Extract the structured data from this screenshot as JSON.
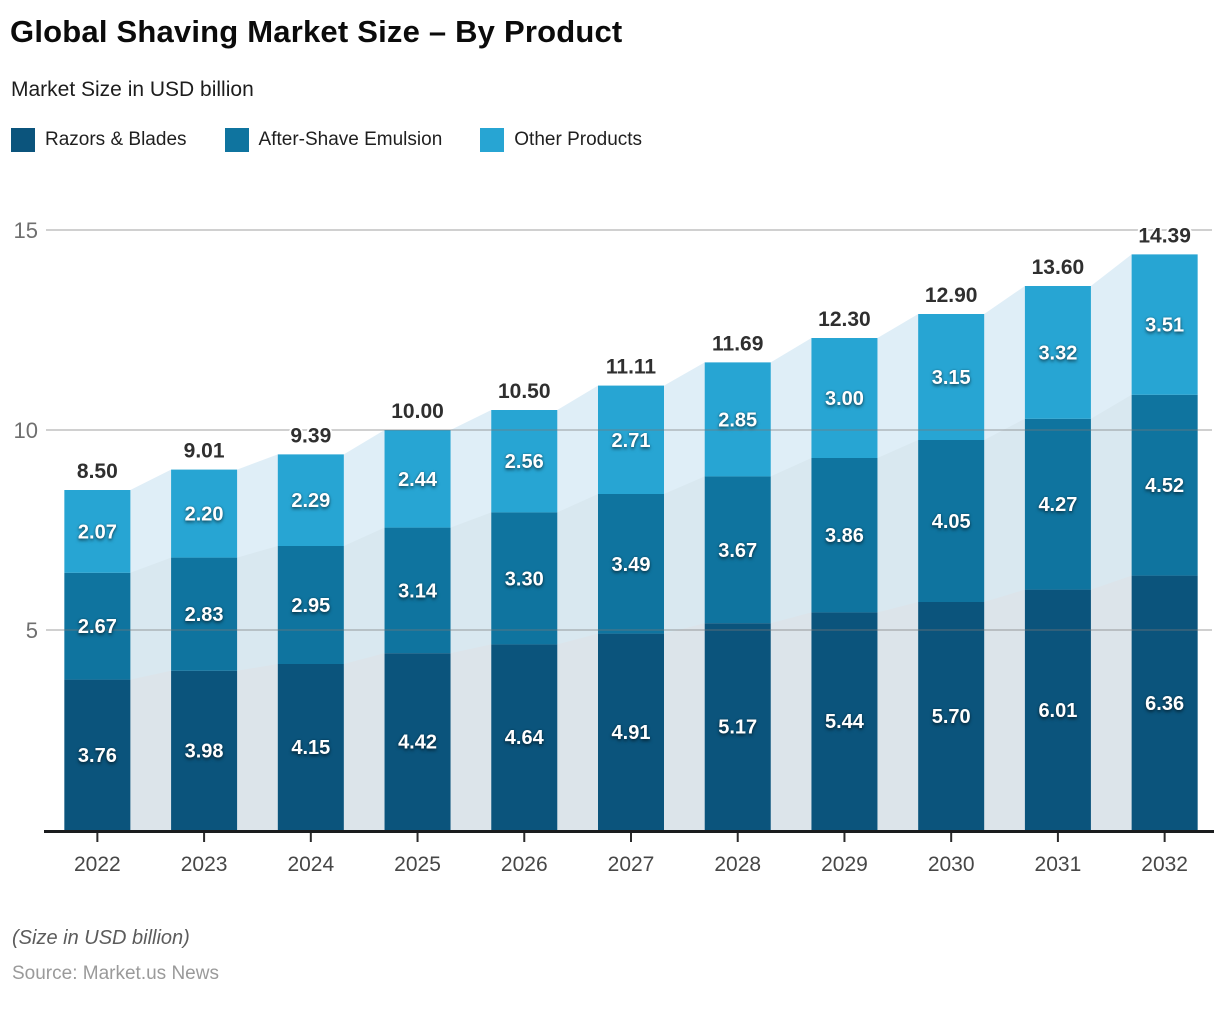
{
  "header": {
    "title": "Global Shaving Market Size – By Product",
    "subtitle": "Market Size in USD billion"
  },
  "legend": [
    {
      "label": "Razors & Blades",
      "color": "#0b547c"
    },
    {
      "label": "After-Shave Emulsion",
      "color": "#0f749f"
    },
    {
      "label": "Other Products",
      "color": "#27a5d3"
    }
  ],
  "chart_data": {
    "type": "bar",
    "stacked": true,
    "title": "Global Shaving Market Size – By Product",
    "subtitle": "Market Size in USD billion",
    "xlabel": "",
    "ylabel": "",
    "ylim": [
      0,
      15
    ],
    "yticks": [
      5,
      10,
      15
    ],
    "grid": true,
    "legend_position": "top",
    "categories": [
      "2022",
      "2023",
      "2024",
      "2025",
      "2026",
      "2027",
      "2028",
      "2029",
      "2030",
      "2031",
      "2032"
    ],
    "series": [
      {
        "name": "Razors & Blades",
        "color": "#0b547c",
        "area_tint": "#dce4ea",
        "values": [
          3.76,
          3.98,
          4.15,
          4.42,
          4.64,
          4.91,
          5.17,
          5.44,
          5.7,
          6.01,
          6.36
        ]
      },
      {
        "name": "After-Shave Emulsion",
        "color": "#0f749f",
        "area_tint": "#d9e8f0",
        "values": [
          2.67,
          2.83,
          2.95,
          3.14,
          3.3,
          3.49,
          3.67,
          3.86,
          4.05,
          4.27,
          4.52
        ]
      },
      {
        "name": "Other Products",
        "color": "#27a5d3",
        "area_tint": "#dfeef7",
        "values": [
          2.07,
          2.2,
          2.29,
          2.44,
          2.56,
          2.71,
          2.85,
          3.0,
          3.15,
          3.32,
          3.51
        ]
      }
    ],
    "totals": [
      8.5,
      9.01,
      9.39,
      10.0,
      10.5,
      11.11,
      11.69,
      12.3,
      12.9,
      13.6,
      14.39
    ],
    "style": {
      "grid_color": "#787878",
      "grid_opacity": 0.35,
      "axis_color": "#1a1c1e",
      "tick_color": "#2b2b2b"
    }
  },
  "footer": {
    "note": "(Size in USD billion)",
    "source": "Source: Market.us News"
  }
}
